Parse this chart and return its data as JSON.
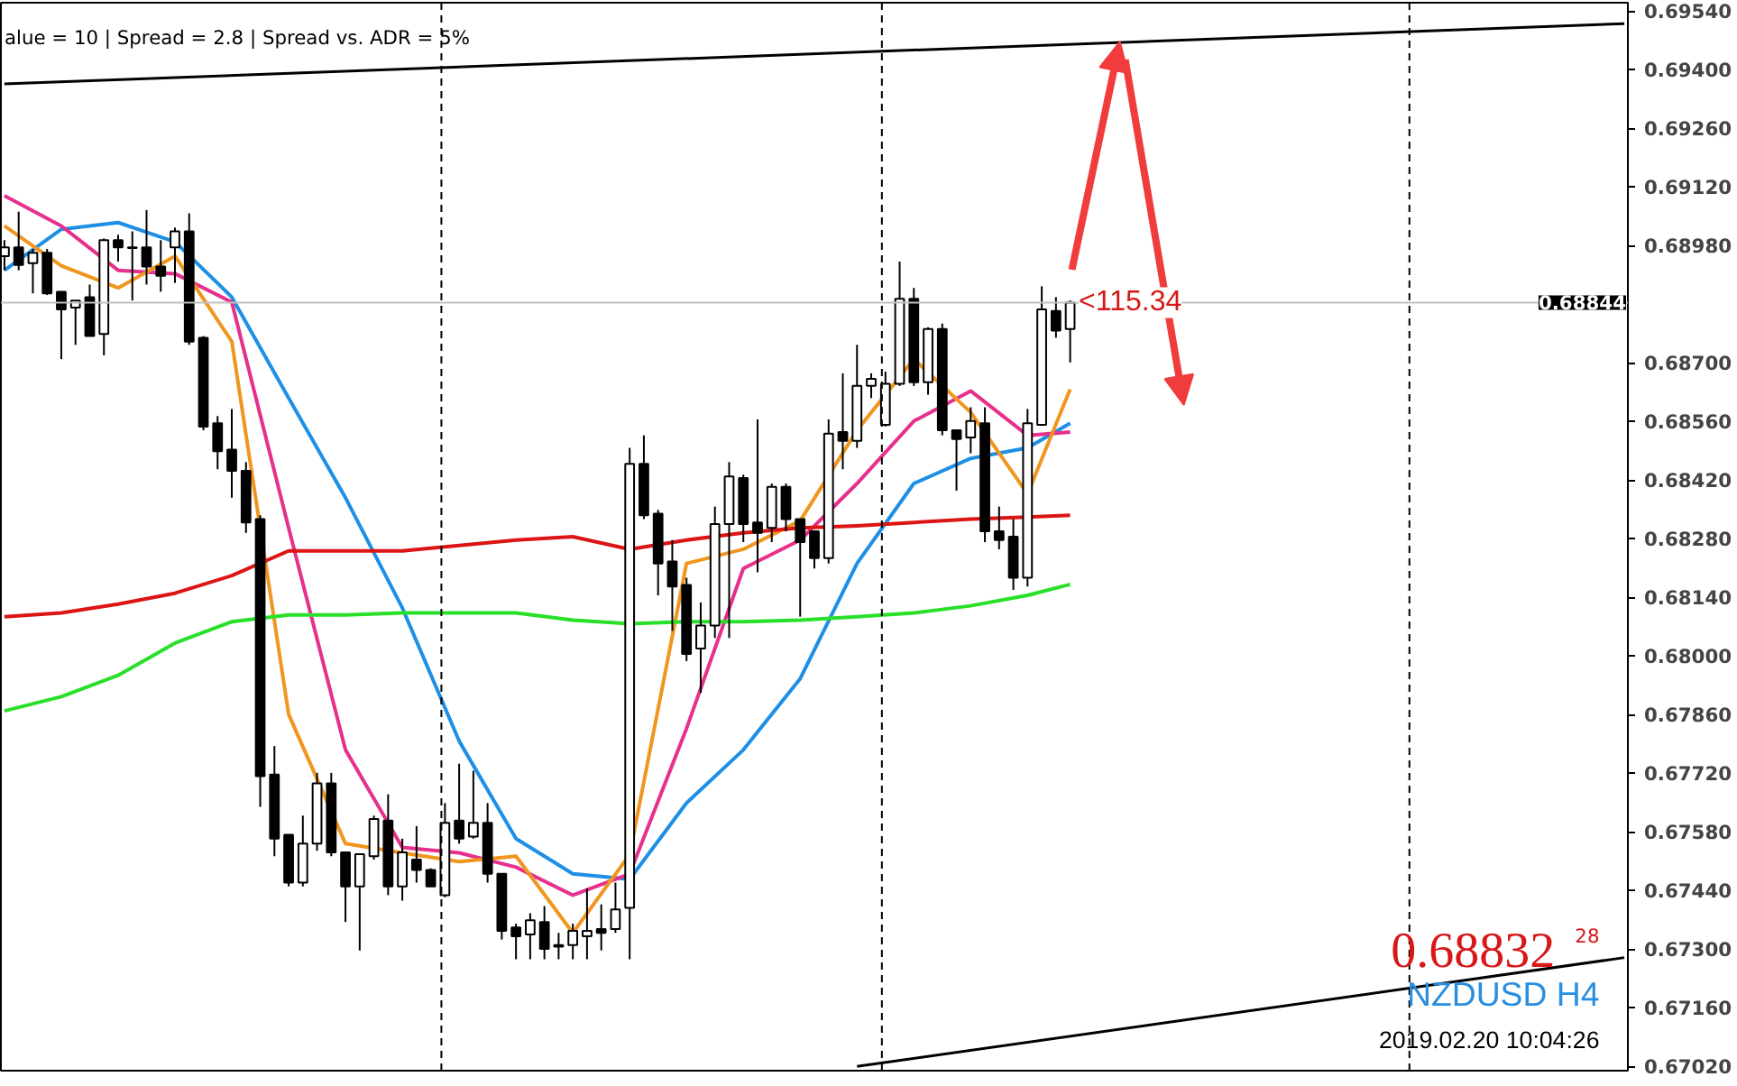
{
  "chart_data": {
    "type": "candlestick",
    "categories": [
      null,
      null,
      null,
      null,
      null,
      null,
      null,
      null,
      null,
      null,
      null,
      null,
      null,
      null,
      null,
      null,
      null,
      null,
      null,
      null,
      null,
      null,
      null,
      null,
      null,
      null,
      null,
      null,
      null,
      null,
      null,
      null,
      null,
      null,
      null,
      null,
      null,
      null,
      null,
      null,
      null,
      null,
      null,
      null,
      null,
      null,
      null,
      null,
      null,
      null,
      null,
      null,
      null,
      null,
      null,
      null,
      null,
      null,
      null,
      null,
      null,
      null,
      null,
      null,
      null,
      null,
      null,
      null,
      null,
      null,
      null,
      null,
      null,
      null,
      null,
      null,
      null,
      null,
      null,
      null,
      null,
      null,
      null,
      null,
      null,
      null,
      null,
      null,
      null,
      null,
      null,
      null,
      null,
      null,
      null,
      null,
      null,
      null,
      null,
      null,
      null,
      null,
      null,
      null,
      null,
      null,
      null,
      null,
      null,
      null,
      null,
      null,
      null,
      null,
      null
    ],
    "ohlc": [
      [
        0.68955,
        0.68993,
        0.68921,
        0.68976
      ],
      [
        0.68976,
        0.69061,
        0.68921,
        0.68934
      ],
      [
        0.68938,
        0.68972,
        0.68866,
        0.68963
      ],
      [
        0.68963,
        0.68972,
        0.68862,
        0.68866
      ],
      [
        0.6887,
        0.6887,
        0.68709,
        0.68828
      ],
      [
        0.68832,
        0.68849,
        0.68743,
        0.68849
      ],
      [
        0.68857,
        0.68887,
        0.68764,
        0.68764
      ],
      [
        0.68769,
        0.68997,
        0.68718,
        0.68993
      ],
      [
        0.68993,
        0.69006,
        0.68942,
        0.68976
      ],
      [
        0.68974,
        0.69014,
        0.68849,
        0.68976
      ],
      [
        0.68976,
        0.69065,
        0.68887,
        0.6893
      ],
      [
        0.6893,
        0.68993,
        0.6887,
        0.68908
      ],
      [
        0.68976,
        0.69023,
        0.68891,
        0.69014
      ],
      [
        0.69014,
        0.69057,
        0.68743,
        0.68751
      ],
      [
        0.6876,
        0.68764,
        0.68539,
        0.68548
      ],
      [
        0.68556,
        0.68573,
        0.68446,
        0.68489
      ],
      [
        0.68493,
        0.6859,
        0.68378,
        0.68442
      ],
      [
        0.68442,
        0.68463,
        0.68294,
        0.68319
      ],
      [
        0.68327,
        0.68336,
        0.6764,
        0.67713
      ],
      [
        0.67717,
        0.67785,
        0.67522,
        0.67564
      ],
      [
        0.67573,
        0.67573,
        0.6745,
        0.67459
      ],
      [
        0.67459,
        0.67619,
        0.6745,
        0.67552
      ],
      [
        0.67552,
        0.67721,
        0.67535,
        0.67696
      ],
      [
        0.67696,
        0.67721,
        0.67522,
        0.67531
      ],
      [
        0.67531,
        0.67531,
        0.67365,
        0.6745
      ],
      [
        0.6745,
        0.67527,
        0.67297,
        0.67527
      ],
      [
        0.67522,
        0.67619,
        0.67514,
        0.67611
      ],
      [
        0.67607,
        0.6767,
        0.67429,
        0.6745
      ],
      [
        0.6745,
        0.67564,
        0.67416,
        0.67531
      ],
      [
        0.67514,
        0.67594,
        0.67459,
        0.67489
      ],
      [
        0.67489,
        0.67493,
        0.6745,
        0.6745
      ],
      [
        0.67429,
        0.67649,
        0.67424,
        0.67602
      ],
      [
        0.67607,
        0.67743,
        0.67552,
        0.67564
      ],
      [
        0.67569,
        0.67726,
        0.67564,
        0.67602
      ],
      [
        0.67602,
        0.67649,
        0.67459,
        0.6748
      ],
      [
        0.6748,
        0.6748,
        0.67323,
        0.67344
      ],
      [
        0.67352,
        0.67361,
        0.67276,
        0.67331
      ],
      [
        0.67335,
        0.67386,
        0.67276,
        0.67369
      ],
      [
        0.67365,
        0.67403,
        0.67276,
        0.67301
      ],
      [
        0.6731,
        0.67339,
        0.67276,
        0.67306
      ],
      [
        0.6731,
        0.67361,
        0.67276,
        0.67344
      ],
      [
        0.67331,
        0.67445,
        0.67276,
        0.67344
      ],
      [
        0.67348,
        0.67407,
        0.67297,
        0.67339
      ],
      [
        0.67348,
        0.67459,
        0.67339,
        0.67395
      ],
      [
        0.67399,
        0.68497,
        0.67276,
        0.68459
      ],
      [
        0.68459,
        0.68527,
        0.68327,
        0.68336
      ],
      [
        0.6834,
        0.68349,
        0.68145,
        0.68221
      ],
      [
        0.68226,
        0.68277,
        0.6806,
        0.68166
      ],
      [
        0.6817,
        0.68187,
        0.67988,
        0.68005
      ],
      [
        0.68018,
        0.68128,
        0.67912,
        0.68073
      ],
      [
        0.68073,
        0.68357,
        0.68043,
        0.68315
      ],
      [
        0.68315,
        0.68463,
        0.68043,
        0.68429
      ],
      [
        0.68425,
        0.68433,
        0.68272,
        0.68315
      ],
      [
        0.68319,
        0.68565,
        0.682,
        0.68294
      ],
      [
        0.68306,
        0.68412,
        0.68272,
        0.68404
      ],
      [
        0.68404,
        0.68412,
        0.68298,
        0.68327
      ],
      [
        0.68327,
        0.68327,
        0.68094,
        0.68272
      ],
      [
        0.68298,
        0.68298,
        0.68209,
        0.68234
      ],
      [
        0.68234,
        0.68565,
        0.68221,
        0.68531
      ],
      [
        0.68535,
        0.68675,
        0.68446,
        0.68514
      ],
      [
        0.68514,
        0.68743,
        0.68497,
        0.68645
      ],
      [
        0.68645,
        0.68675,
        0.68616,
        0.68662
      ],
      [
        0.68552,
        0.68679,
        0.68548,
        0.6865
      ],
      [
        0.6865,
        0.68942,
        0.68645,
        0.68853
      ],
      [
        0.68853,
        0.68879,
        0.68645,
        0.68654
      ],
      [
        0.68654,
        0.68785,
        0.68624,
        0.68781
      ],
      [
        0.68781,
        0.68794,
        0.68527,
        0.68539
      ],
      [
        0.68539,
        0.68539,
        0.68395,
        0.68518
      ],
      [
        0.68522,
        0.68594,
        0.68484,
        0.68561
      ],
      [
        0.68556,
        0.68594,
        0.68272,
        0.68298
      ],
      [
        0.68298,
        0.68357,
        0.68255,
        0.68277
      ],
      [
        0.68285,
        0.68327,
        0.68158,
        0.68187
      ],
      [
        0.68187,
        0.6859,
        0.68166,
        0.68556
      ],
      [
        0.68552,
        0.68883,
        0.68552,
        0.68828
      ],
      [
        0.68824,
        0.68857,
        0.6876,
        0.68777
      ],
      [
        0.68781,
        0.68849,
        0.68701,
        0.68844
      ],
      null,
      null,
      null,
      null,
      null,
      null,
      null,
      null,
      null,
      null,
      null,
      null,
      null,
      null,
      null,
      null,
      null,
      null,
      null,
      null,
      null,
      null,
      null,
      null,
      null,
      null,
      null,
      null,
      null,
      null,
      null,
      null,
      null,
      null,
      null,
      null,
      null,
      null,
      null
    ],
    "series": [
      {
        "type": "line",
        "color": "#1e8fe6",
        "values": [
          0.68921,
          null,
          null,
          null,
          0.69019,
          null,
          null,
          null,
          0.69035,
          null,
          null,
          null,
          0.68989,
          null,
          null,
          null,
          0.68857,
          null,
          null,
          null,
          0.68616,
          null,
          null,
          null,
          0.68378,
          null,
          null,
          null,
          0.68115,
          null,
          null,
          null,
          0.67797,
          null,
          null,
          null,
          0.67564,
          null,
          null,
          null,
          0.6748,
          null,
          null,
          null,
          0.67467,
          null,
          null,
          null,
          0.67649,
          null,
          null,
          null,
          0.67776,
          null,
          null,
          null,
          0.67946,
          null,
          null,
          null,
          0.68221,
          null,
          null,
          null,
          0.68412,
          null,
          null,
          null,
          0.68472,
          null,
          null,
          null,
          0.68497,
          null,
          null,
          0.68556,
          null,
          null,
          null,
          null,
          null,
          null,
          null,
          null,
          null,
          null,
          null,
          null,
          null,
          null,
          null,
          null,
          null,
          null,
          null,
          null,
          null,
          null,
          null,
          null,
          null,
          null,
          null,
          null,
          null,
          null,
          null,
          null,
          null,
          null,
          null,
          null,
          null,
          null,
          null
        ]
      },
      {
        "type": "line",
        "color": "#e6308c",
        "values": [
          0.69099,
          null,
          null,
          null,
          0.69027,
          null,
          null,
          null,
          0.68921,
          null,
          null,
          null,
          0.68913,
          null,
          null,
          null,
          0.68845,
          null,
          null,
          null,
          0.68306,
          null,
          null,
          null,
          0.67776,
          null,
          null,
          null,
          0.67543,
          null,
          null,
          null,
          0.6753,
          null,
          null,
          null,
          0.67496,
          null,
          null,
          null,
          0.67429,
          null,
          null,
          null,
          0.6748,
          null,
          null,
          null,
          0.67827,
          null,
          null,
          null,
          0.68209,
          null,
          null,
          null,
          0.68277,
          null,
          null,
          null,
          0.68412,
          null,
          null,
          null,
          0.68561,
          null,
          null,
          null,
          0.68633,
          null,
          null,
          null,
          0.68527,
          null,
          null,
          0.68535,
          null,
          null,
          null,
          null,
          null,
          null,
          null,
          null,
          null,
          null,
          null,
          null,
          null,
          null,
          null,
          null,
          null,
          null,
          null,
          null,
          null,
          null,
          null,
          null,
          null,
          null,
          null,
          null,
          null,
          null,
          null,
          null,
          null,
          null,
          null,
          null,
          null,
          null,
          null
        ]
      },
      {
        "type": "line",
        "color": "#f0961e",
        "values": [
          0.69027,
          null,
          null,
          null,
          0.68932,
          null,
          null,
          null,
          0.68879,
          null,
          null,
          null,
          0.68955,
          null,
          null,
          null,
          0.68751,
          null,
          null,
          null,
          0.67861,
          null,
          null,
          null,
          0.67552,
          null,
          null,
          null,
          0.6753,
          null,
          null,
          null,
          0.67509,
          null,
          null,
          null,
          0.67522,
          null,
          null,
          null,
          0.67339,
          null,
          null,
          null,
          0.67526,
          null,
          null,
          null,
          0.68221,
          null,
          null,
          null,
          0.68255,
          null,
          null,
          null,
          0.68323,
          null,
          null,
          null,
          0.68539,
          null,
          null,
          null,
          0.68709,
          null,
          null,
          null,
          0.68582,
          null,
          null,
          null,
          0.68387,
          null,
          null,
          0.68637,
          null,
          null,
          null,
          null,
          null,
          null,
          null,
          null,
          null,
          null,
          null,
          null,
          null,
          null,
          null,
          null,
          null,
          null,
          null,
          null,
          null,
          null,
          null,
          null,
          null,
          null,
          null,
          null,
          null,
          null,
          null,
          null,
          null,
          null,
          null,
          null,
          null,
          null,
          null
        ]
      },
      {
        "type": "line",
        "color": "#dd1414",
        "values": [
          0.68094,
          null,
          null,
          null,
          0.68103,
          null,
          null,
          null,
          0.68124,
          null,
          null,
          null,
          0.6815,
          null,
          null,
          null,
          0.68192,
          null,
          null,
          null,
          0.68251,
          null,
          null,
          null,
          0.68251,
          null,
          null,
          null,
          0.68251,
          null,
          null,
          null,
          0.68264,
          null,
          null,
          null,
          0.68277,
          null,
          null,
          null,
          0.68285,
          null,
          null,
          null,
          0.68255,
          null,
          null,
          null,
          0.68277,
          null,
          null,
          null,
          0.68294,
          null,
          null,
          null,
          0.68306,
          null,
          null,
          null,
          0.68311,
          null,
          null,
          null,
          0.68319,
          null,
          null,
          null,
          0.68327,
          null,
          null,
          null,
          0.68332,
          null,
          null,
          0.68336,
          null,
          null,
          null,
          null,
          null,
          null,
          null,
          null,
          null,
          null,
          null,
          null,
          null,
          null,
          null,
          null,
          null,
          null,
          null,
          null,
          null,
          null,
          null,
          null,
          null,
          null,
          null,
          null,
          null,
          null,
          null,
          null,
          null,
          null,
          null,
          null,
          null,
          null,
          null
        ]
      },
      {
        "type": "line",
        "color": "#28e028",
        "values": [
          0.67869,
          null,
          null,
          null,
          0.67903,
          null,
          null,
          null,
          0.67954,
          null,
          null,
          null,
          0.68031,
          null,
          null,
          null,
          0.68082,
          null,
          null,
          null,
          0.68098,
          null,
          null,
          null,
          0.68098,
          null,
          null,
          null,
          0.68103,
          null,
          null,
          null,
          0.68103,
          null,
          null,
          null,
          0.68103,
          null,
          null,
          null,
          0.68086,
          null,
          null,
          null,
          0.68077,
          null,
          null,
          null,
          0.68082,
          null,
          null,
          null,
          0.68082,
          null,
          null,
          null,
          0.68086,
          null,
          null,
          null,
          0.68094,
          null,
          null,
          null,
          0.68103,
          null,
          null,
          null,
          0.6812,
          null,
          null,
          null,
          0.68145,
          null,
          null,
          0.68171,
          null,
          null,
          null,
          null,
          null,
          null,
          null,
          null,
          null,
          null,
          null,
          null,
          null,
          null,
          null,
          null,
          null,
          null,
          null,
          null,
          null,
          null,
          null,
          null,
          null,
          null,
          null,
          null,
          null,
          null,
          null,
          null,
          null,
          null,
          null,
          null,
          null,
          null,
          null
        ]
      },
      {
        "type": "line",
        "color": "#000000",
        "values": [
          0.69366,
          null,
          null,
          null,
          null,
          null,
          null,
          null,
          null,
          null,
          null,
          null,
          null,
          null,
          null,
          null,
          null,
          null,
          null,
          null,
          null,
          null,
          null,
          null,
          null,
          null,
          null,
          null,
          null,
          null,
          null,
          null,
          null,
          null,
          null,
          null,
          null,
          null,
          null,
          null,
          null,
          null,
          null,
          null,
          null,
          null,
          null,
          null,
          null,
          null,
          null,
          null,
          null,
          null,
          null,
          null,
          null,
          null,
          null,
          null,
          null,
          null,
          null,
          null,
          null,
          null,
          null,
          null,
          null,
          null,
          null,
          null,
          null,
          null,
          null,
          null,
          null,
          null,
          null,
          null,
          null,
          null,
          null,
          null,
          null,
          null,
          null,
          null,
          null,
          null,
          null,
          null,
          null,
          null,
          null,
          null,
          null,
          null,
          null,
          null,
          null,
          null,
          null,
          null,
          null,
          null,
          null,
          null,
          null,
          null,
          null,
          null,
          null,
          null,
          0.6951
        ]
      },
      {
        "type": "line",
        "color": "#000000",
        "values": [
          null,
          null,
          null,
          null,
          null,
          null,
          null,
          null,
          null,
          null,
          null,
          null,
          null,
          null,
          null,
          null,
          null,
          null,
          null,
          null,
          null,
          null,
          null,
          null,
          null,
          null,
          null,
          null,
          null,
          null,
          null,
          null,
          null,
          null,
          null,
          null,
          null,
          null,
          null,
          null,
          null,
          null,
          null,
          null,
          null,
          null,
          null,
          null,
          null,
          null,
          null,
          null,
          null,
          null,
          null,
          null,
          null,
          null,
          null,
          null,
          0.6702,
          null,
          null,
          null,
          null,
          null,
          null,
          null,
          null,
          null,
          null,
          null,
          null,
          null,
          null,
          null,
          null,
          null,
          null,
          null,
          null,
          null,
          null,
          null,
          null,
          null,
          null,
          null,
          null,
          null,
          null,
          null,
          null,
          null,
          null,
          null,
          null,
          null,
          null,
          null,
          null,
          null,
          null,
          null,
          null,
          null,
          null,
          null,
          null,
          null,
          null,
          null,
          null,
          null,
          0.6728
        ]
      }
    ],
    "ylim": [
      0.6701,
      0.6956
    ],
    "yticks": [
      {
        "value": 0.6954,
        "label": "0.69540"
      },
      {
        "value": 0.694,
        "label": "0.69400"
      },
      {
        "value": 0.6926,
        "label": "0.69260"
      },
      {
        "value": 0.6912,
        "label": "0.69120"
      },
      {
        "value": 0.6898,
        "label": "0.68980"
      },
      {
        "value": 0.687,
        "label": "0.68700"
      },
      {
        "value": 0.6856,
        "label": "0.68560"
      },
      {
        "value": 0.6842,
        "label": "0.68420"
      },
      {
        "value": 0.6828,
        "label": "0.68280"
      },
      {
        "value": 0.6814,
        "label": "0.68140"
      },
      {
        "value": 0.68,
        "label": "0.68000"
      },
      {
        "value": 0.6786,
        "label": "0.67860"
      },
      {
        "value": 0.6772,
        "label": "0.67720"
      },
      {
        "value": 0.6758,
        "label": "0.67580"
      },
      {
        "value": 0.6744,
        "label": "0.67440"
      },
      {
        "value": 0.673,
        "label": "0.67300"
      },
      {
        "value": 0.6716,
        "label": "0.67160"
      },
      {
        "value": 0.6702,
        "label": "0.67020"
      }
    ],
    "tick_labels": "y",
    "ref_lines": [
      {
        "axis": "y",
        "value": 0.68844,
        "label": "0.68844",
        "color": "#c0c0c0"
      }
    ],
    "annotations": [
      "alue = 10  |  Spread = 2.8  |  Spread vs. ADR = 5%",
      {
        "text": "<115.34",
        "y": 0.68844
      },
      "0.68832",
      "28",
      "NZDUSD H4",
      "2019.02.20 10:04:26"
    ]
  }
}
